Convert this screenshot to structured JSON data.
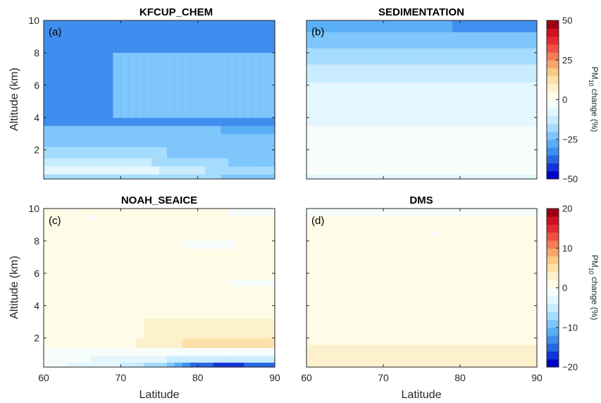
{
  "chart_data": [
    {
      "type": "heatmap",
      "panel_label": "(a)",
      "title": "KFCUP_CHEM",
      "xlabel": "",
      "ylabel": "Altitude (km)",
      "xlim": [
        60,
        90
      ],
      "ylim": [
        0.2,
        10
      ],
      "xticks": [
        "60",
        "70",
        "80",
        "90"
      ],
      "yticks": [
        "2",
        "4",
        "6",
        "8",
        "10"
      ],
      "x_tick_labels_shown": false,
      "colorbar_group": "top",
      "layers": [
        {
          "z0": 0.2,
          "z1": 0.5,
          "profile": [
            [
              60,
              -17
            ],
            [
              75,
              -18
            ],
            [
              90,
              -22
            ]
          ]
        },
        {
          "z0": 0.5,
          "z1": 1.0,
          "profile": [
            [
              60,
              -8
            ],
            [
              72,
              -6
            ],
            [
              76,
              -12
            ],
            [
              90,
              -20
            ]
          ]
        },
        {
          "z0": 1.0,
          "z1": 1.5,
          "profile": [
            [
              60,
              -14
            ],
            [
              70,
              -12
            ],
            [
              78,
              -18
            ],
            [
              90,
              -22
            ]
          ]
        },
        {
          "z0": 1.5,
          "z1": 2.2,
          "profile": [
            [
              60,
              -20
            ],
            [
              72,
              -19
            ],
            [
              80,
              -21
            ],
            [
              90,
              -22
            ]
          ]
        },
        {
          "z0": 2.2,
          "z1": 3.0,
          "profile": [
            [
              60,
              -24
            ],
            [
              74,
              -24
            ],
            [
              90,
              -22
            ]
          ]
        },
        {
          "z0": 3.0,
          "z1": 3.5,
          "profile": [
            [
              60,
              -24
            ],
            [
              75,
              -24
            ],
            [
              90,
              -26
            ]
          ]
        },
        {
          "z0": 3.5,
          "z1": 10.0,
          "profile": [
            [
              60,
              -33
            ],
            [
              90,
              -33
            ]
          ]
        }
      ],
      "boundaries": [
        {
          "z": 4.0,
          "x": 69.5
        },
        {
          "z": 4.5,
          "x": 70.5
        },
        {
          "z": 5.0,
          "x": 71.5
        },
        {
          "z": 6.0,
          "x": 72.5
        },
        {
          "z": 6.7,
          "x": 74
        },
        {
          "z": 7.5,
          "x": 75
        },
        {
          "z": 8.0,
          "x": 76
        }
      ],
      "upper_right_value": -24
    },
    {
      "type": "heatmap",
      "panel_label": "(b)",
      "title": "SEDIMENTATION",
      "xlabel": "",
      "ylabel": "",
      "xlim": [
        60,
        90
      ],
      "ylim": [
        0.2,
        10
      ],
      "xticks": [
        "60",
        "70",
        "80",
        "90"
      ],
      "yticks": [
        "2",
        "4",
        "6",
        "8",
        "10"
      ],
      "x_tick_labels_shown": false,
      "colorbar_group": "top",
      "layers": [
        {
          "z0": 0.2,
          "z1": 0.5,
          "profile": [
            [
              60,
              -8
            ],
            [
              90,
              -6
            ]
          ]
        },
        {
          "z0": 0.5,
          "z1": 3.5,
          "profile": [
            [
              60,
              -4
            ],
            [
              90,
              -4
            ]
          ]
        },
        {
          "z0": 3.5,
          "z1": 6.2,
          "profile": [
            [
              60,
              -8
            ],
            [
              90,
              -8
            ]
          ]
        },
        {
          "z0": 6.2,
          "z1": 7.3,
          "profile": [
            [
              60,
              -13
            ],
            [
              90,
              -12
            ]
          ]
        },
        {
          "z0": 7.3,
          "z1": 8.3,
          "profile": [
            [
              60,
              -17
            ],
            [
              90,
              -16
            ]
          ]
        },
        {
          "z0": 8.3,
          "z1": 9.3,
          "profile": [
            [
              60,
              -21
            ],
            [
              90,
              -22
            ]
          ]
        },
        {
          "z0": 9.3,
          "z1": 10.0,
          "profile": [
            [
              60,
              -25
            ],
            [
              90,
              -33
            ]
          ]
        }
      ]
    },
    {
      "type": "heatmap",
      "panel_label": "(c)",
      "title": "NOAH_SEAICE",
      "xlabel": "Latitude",
      "ylabel": "Altitude (km)",
      "xlim": [
        60,
        90
      ],
      "ylim": [
        0.2,
        10
      ],
      "xticks": [
        "60",
        "70",
        "80",
        "90"
      ],
      "yticks": [
        "2",
        "4",
        "6",
        "8",
        "10"
      ],
      "x_tick_labels_shown": true,
      "colorbar_group": "bottom",
      "layers": [
        {
          "z0": 0.2,
          "z1": 0.5,
          "profile": [
            [
              60,
              -1
            ],
            [
              70,
              -4
            ],
            [
              76,
              -8
            ],
            [
              80,
              -15
            ],
            [
              84,
              -17
            ],
            [
              90,
              -14
            ]
          ]
        },
        {
          "z0": 0.5,
          "z1": 0.9,
          "profile": [
            [
              60,
              -1
            ],
            [
              72,
              -3
            ],
            [
              80,
              -5
            ],
            [
              90,
              -6
            ]
          ]
        },
        {
          "z0": 0.9,
          "z1": 1.4,
          "profile": [
            [
              60,
              0
            ],
            [
              75,
              -1
            ],
            [
              90,
              -2
            ]
          ]
        },
        {
          "z0": 1.4,
          "z1": 2.0,
          "profile": [
            [
              60,
              0
            ],
            [
              72,
              2
            ],
            [
              78,
              4
            ],
            [
              90,
              5
            ]
          ]
        },
        {
          "z0": 2.0,
          "z1": 3.2,
          "profile": [
            [
              60,
              0
            ],
            [
              71,
              1
            ],
            [
              76,
              3
            ],
            [
              90,
              3
            ]
          ]
        },
        {
          "z0": 3.2,
          "z1": 10.0,
          "profile": [
            [
              60,
              0
            ],
            [
              90,
              0
            ]
          ]
        }
      ],
      "patches": [
        {
          "x0": 63,
          "x1": 64,
          "z0": 9.8,
          "z1": 10.0,
          "value": -2
        },
        {
          "x0": 66,
          "x1": 67,
          "z0": 9.3,
          "z1": 9.6,
          "value": -2
        },
        {
          "x0": 78,
          "x1": 85,
          "z0": 7.5,
          "z1": 8.0,
          "value": -2
        },
        {
          "x0": 84,
          "x1": 90,
          "z0": 5.2,
          "z1": 5.6,
          "value": -2
        },
        {
          "x0": 84,
          "x1": 90,
          "z0": 9.5,
          "z1": 10.0,
          "value": -1
        }
      ]
    },
    {
      "type": "heatmap",
      "panel_label": "(d)",
      "title": "DMS",
      "xlabel": "Latitude",
      "ylabel": "",
      "xlim": [
        60,
        90
      ],
      "ylim": [
        0.2,
        10
      ],
      "xticks": [
        "60",
        "70",
        "80",
        "90"
      ],
      "yticks": [
        "2",
        "4",
        "6",
        "8",
        "10"
      ],
      "x_tick_labels_shown": true,
      "colorbar_group": "bottom",
      "layers": [
        {
          "z0": 0.2,
          "z1": 1.6,
          "profile": [
            [
              60,
              3
            ],
            [
              90,
              3
            ]
          ]
        },
        {
          "z0": 1.6,
          "z1": 9.6,
          "profile": [
            [
              60,
              0
            ],
            [
              90,
              0
            ]
          ]
        },
        {
          "z0": 9.6,
          "z1": 10.0,
          "profile": [
            [
              60,
              -2
            ],
            [
              90,
              -1
            ]
          ]
        }
      ],
      "patches": [
        {
          "x0": 76,
          "x1": 77,
          "z0": 8.3,
          "z1": 8.6,
          "value": -2
        }
      ]
    }
  ],
  "colorbars": {
    "top": {
      "range": [
        -50,
        50
      ],
      "ticks": [
        "50",
        "25",
        "0",
        "−25",
        "−50"
      ],
      "label_main": "PM",
      "label_sub": "10",
      "label_tail": " change (%)"
    },
    "bottom": {
      "range": [
        -20,
        20
      ],
      "ticks": [
        "20",
        "10",
        "0",
        "−10",
        "−20"
      ],
      "label_main": "PM",
      "label_sub": "10",
      "label_tail": " change (%)"
    }
  },
  "colors": {
    "palette": [
      "#0000c9",
      "#1334d8",
      "#2866e4",
      "#3f8eef",
      "#5aaef6",
      "#7ec6fb",
      "#a5dcfd",
      "#c9ecfe",
      "#e4f7fe",
      "#f6fdfb",
      "#fefbe7",
      "#fdf1cd",
      "#fce1aa",
      "#fbc888",
      "#f8a56c",
      "#f47c56",
      "#ee5144",
      "#e32a33",
      "#d01022",
      "#9e0016"
    ]
  }
}
